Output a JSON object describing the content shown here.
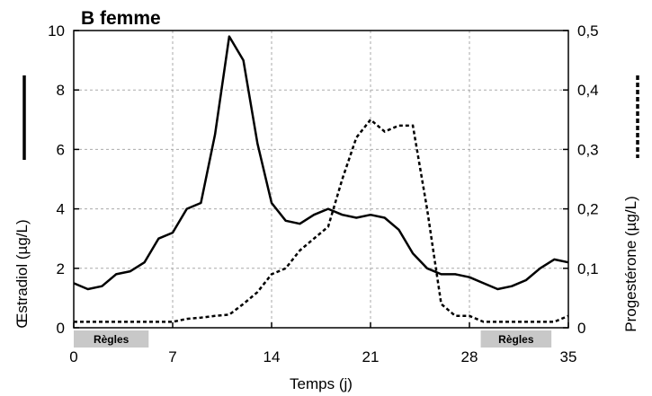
{
  "chart_data": {
    "type": "line",
    "title": "B femme",
    "xlabel": "Temps (j)",
    "ylabel_left": "Œstradiol (µg/L)",
    "ylabel_right": "Progestérone (µg/L)",
    "xlim": [
      0,
      35
    ],
    "ylim_left": [
      0,
      10
    ],
    "ylim_right": [
      0,
      0.5
    ],
    "x_ticks": [
      "0",
      "7",
      "14",
      "21",
      "28",
      "35"
    ],
    "y_ticks_left": [
      "0",
      "2",
      "4",
      "6",
      "8",
      "10"
    ],
    "y_ticks_right": [
      "0",
      "0,1",
      "0,2",
      "0,3",
      "0,4",
      "0,5"
    ],
    "grid": "dashed",
    "series": [
      {
        "axis": "left",
        "style": "solid",
        "x": [
          0,
          1,
          2,
          3,
          4,
          5,
          6,
          7,
          8,
          9,
          10,
          11,
          12,
          13,
          14,
          15,
          16,
          17,
          18,
          19,
          20,
          21,
          22,
          23,
          24,
          25,
          26,
          27,
          28,
          29,
          30,
          31,
          32,
          33,
          34,
          35
        ],
        "y": [
          1.5,
          1.3,
          1.4,
          1.8,
          1.9,
          2.2,
          3.0,
          3.2,
          4.0,
          4.2,
          6.5,
          9.8,
          9.0,
          6.2,
          4.2,
          3.6,
          3.5,
          3.8,
          4.0,
          3.8,
          3.7,
          3.8,
          3.7,
          3.3,
          2.5,
          2.0,
          1.8,
          1.8,
          1.7,
          1.5,
          1.3,
          1.4,
          1.6,
          2.0,
          2.3,
          2.2
        ]
      },
      {
        "axis": "right",
        "style": "dashed",
        "x": [
          0,
          1,
          2,
          3,
          4,
          5,
          6,
          7,
          8,
          9,
          10,
          11,
          12,
          13,
          14,
          15,
          16,
          17,
          18,
          19,
          20,
          21,
          22,
          23,
          24,
          25,
          26,
          27,
          28,
          29,
          30,
          31,
          32,
          33,
          34,
          35
        ],
        "y": [
          0.01,
          0.01,
          0.01,
          0.01,
          0.01,
          0.01,
          0.01,
          0.01,
          0.015,
          0.017,
          0.02,
          0.022,
          0.04,
          0.06,
          0.09,
          0.1,
          0.13,
          0.15,
          0.17,
          0.25,
          0.32,
          0.35,
          0.33,
          0.34,
          0.34,
          0.2,
          0.04,
          0.02,
          0.02,
          0.01,
          0.01,
          0.01,
          0.01,
          0.01,
          0.01,
          0.02
        ]
      }
    ],
    "annotations": [
      {
        "text": "Règles",
        "x_start": 0,
        "x_end": 5.3
      },
      {
        "text": "Règles",
        "x_start": 28.8,
        "x_end": 33.8
      }
    ]
  }
}
